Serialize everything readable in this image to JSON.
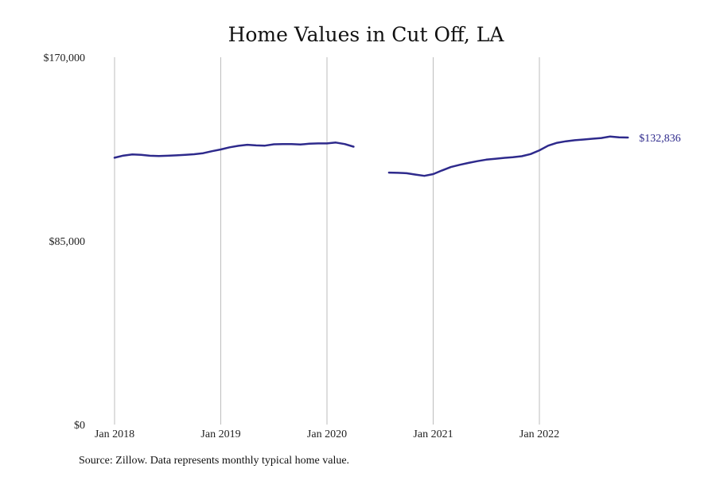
{
  "chart_data": {
    "type": "line",
    "title": "Home Values in Cut Off, LA",
    "xlabel": "",
    "ylabel": "",
    "ylim": [
      0,
      170000
    ],
    "y_ticks": [
      {
        "value": 0,
        "label": "$0"
      },
      {
        "value": 85000,
        "label": "$85,000"
      },
      {
        "value": 170000,
        "label": "$170,000"
      }
    ],
    "x_ticks": [
      {
        "value": "2018-01",
        "label": "Jan 2018"
      },
      {
        "value": "2019-01",
        "label": "Jan 2019"
      },
      {
        "value": "2020-01",
        "label": "Jan 2020"
      },
      {
        "value": "2021-01",
        "label": "Jan 2021"
      },
      {
        "value": "2022-01",
        "label": "Jan 2022"
      }
    ],
    "grid": "vertical",
    "line_color": "#2e2a8c",
    "end_label": "$132,836",
    "series": [
      {
        "points": [
          [
            "2018-01",
            123500
          ],
          [
            "2018-02",
            124500
          ],
          [
            "2018-03",
            125000
          ],
          [
            "2018-04",
            124800
          ],
          [
            "2018-05",
            124400
          ],
          [
            "2018-06",
            124300
          ],
          [
            "2018-07",
            124400
          ],
          [
            "2018-08",
            124600
          ],
          [
            "2018-09",
            124800
          ],
          [
            "2018-10",
            125100
          ],
          [
            "2018-11",
            125600
          ],
          [
            "2018-12",
            126500
          ],
          [
            "2019-01",
            127300
          ],
          [
            "2019-02",
            128300
          ],
          [
            "2019-03",
            129000
          ],
          [
            "2019-04",
            129500
          ],
          [
            "2019-05",
            129200
          ],
          [
            "2019-06",
            129100
          ],
          [
            "2019-07",
            129700
          ],
          [
            "2019-08",
            129800
          ],
          [
            "2019-09",
            129800
          ],
          [
            "2019-10",
            129600
          ],
          [
            "2019-11",
            130000
          ],
          [
            "2019-12",
            130100
          ],
          [
            "2020-01",
            130100
          ],
          [
            "2020-02",
            130500
          ],
          [
            "2020-03",
            129800
          ],
          [
            "2020-04",
            128600
          ],
          null,
          null,
          null,
          [
            "2020-08",
            116600
          ],
          [
            "2020-09",
            116500
          ],
          [
            "2020-10",
            116300
          ],
          [
            "2020-11",
            115700
          ],
          [
            "2020-12",
            115100
          ],
          [
            "2021-01",
            115900
          ],
          [
            "2021-02",
            117600
          ],
          [
            "2021-03",
            119200
          ],
          [
            "2021-04",
            120200
          ],
          [
            "2021-05",
            121100
          ],
          [
            "2021-06",
            121900
          ],
          [
            "2021-07",
            122600
          ],
          [
            "2021-08",
            123000
          ],
          [
            "2021-09",
            123400
          ],
          [
            "2021-10",
            123700
          ],
          [
            "2021-11",
            124200
          ],
          [
            "2021-12",
            125200
          ],
          [
            "2022-01",
            126900
          ],
          [
            "2022-02",
            129100
          ],
          [
            "2022-03",
            130400
          ],
          [
            "2022-04",
            131100
          ],
          [
            "2022-05",
            131600
          ],
          [
            "2022-06",
            131900
          ],
          [
            "2022-07",
            132300
          ],
          [
            "2022-08",
            132600
          ],
          [
            "2022-09",
            133300
          ],
          [
            "2022-10",
            132900
          ],
          [
            "2022-11",
            132836
          ]
        ]
      }
    ]
  },
  "footer": {
    "source": "Source: Zillow. Data represents monthly typical home value."
  }
}
